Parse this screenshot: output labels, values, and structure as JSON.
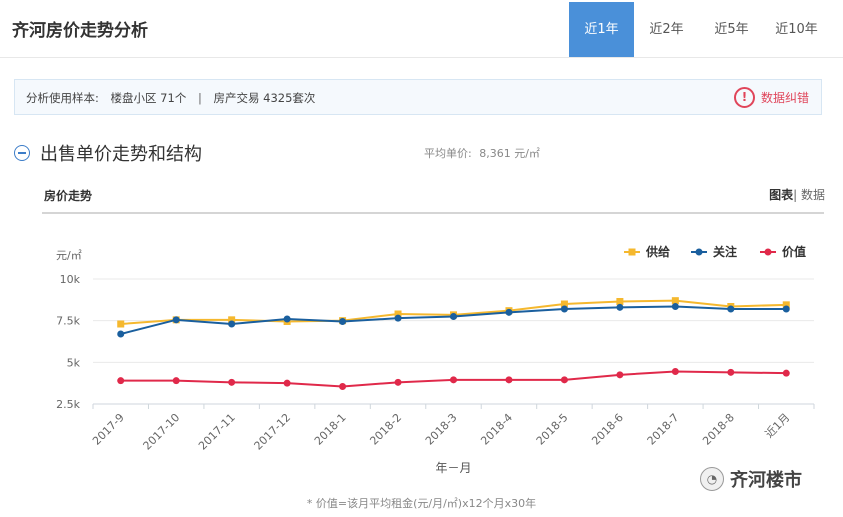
{
  "page": {
    "title": "齐河房价走势分析",
    "tabs": [
      {
        "label": "近1年",
        "active": true
      },
      {
        "label": "近2年",
        "active": false
      },
      {
        "label": "近5年",
        "active": false
      },
      {
        "label": "近10年",
        "active": false
      }
    ]
  },
  "sample": {
    "label": "分析使用样本:",
    "communities": "楼盘小区 71个",
    "separator": "|",
    "transactions": "房产交易 4325套次",
    "report_label": "数据纠错",
    "report_icon": "exclamation-circle-icon"
  },
  "section": {
    "title": "出售单价走势和结构",
    "avg_label": "平均单价:",
    "avg_value": "8,361 元/㎡",
    "collapse_icon": "minus-circle-icon"
  },
  "chart_card": {
    "title": "房价走势",
    "view_chart": "图表",
    "view_separator": "|",
    "view_data": "数据"
  },
  "chart_data": {
    "type": "line",
    "ylabel": "元/㎡",
    "xlabel": "年－月",
    "categories": [
      "2017-9",
      "2017-10",
      "2017-11",
      "2017-12",
      "2018-1",
      "2018-2",
      "2018-3",
      "2018-4",
      "2018-5",
      "2018-6",
      "2018-7",
      "2018-8",
      "近1月"
    ],
    "yticks": [
      {
        "value": 2500,
        "label": "2.5k"
      },
      {
        "value": 5000,
        "label": "5k"
      },
      {
        "value": 7500,
        "label": "7.5k"
      },
      {
        "value": 10000,
        "label": "10k"
      }
    ],
    "ylim": [
      2500,
      10000
    ],
    "grid": true,
    "legend_position": "top-right",
    "series": [
      {
        "name": "供给",
        "color": "#f5b82e",
        "marker": "square",
        "values": [
          7300,
          7550,
          7550,
          7450,
          7500,
          7900,
          7850,
          8100,
          8500,
          8650,
          8700,
          8350,
          8450
        ]
      },
      {
        "name": "关注",
        "color": "#1a5f9e",
        "marker": "circle",
        "values": [
          6700,
          7550,
          7300,
          7600,
          7450,
          7650,
          7750,
          8000,
          8200,
          8300,
          8350,
          8200,
          8200
        ]
      },
      {
        "name": "价值",
        "color": "#e0294a",
        "marker": "circle",
        "values": [
          3900,
          3900,
          3800,
          3750,
          3550,
          3800,
          3950,
          3950,
          3950,
          4250,
          4450,
          4400,
          4350
        ]
      }
    ]
  },
  "footnote": "* 价值=该月平均租金(元/月/㎡)x12个月x30年",
  "watermark": {
    "text": "齐河楼市",
    "icon": "wechat-icon"
  }
}
